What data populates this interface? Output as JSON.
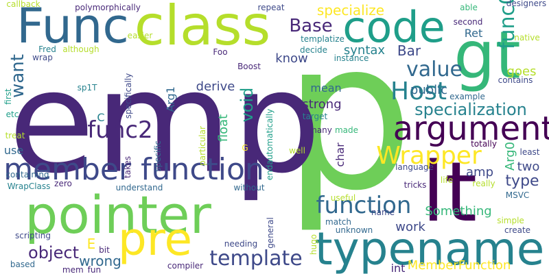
{
  "palette": {
    "dark_purple": "#440154",
    "indigo": "#482878",
    "slate_blue": "#3e4989",
    "steel_blue": "#31688e",
    "teal": "#26828e",
    "sea_green": "#1f9e89",
    "green": "#35b779",
    "lime": "#6ece58",
    "light_lime": "#b5de2b",
    "yellow": "#fde725"
  },
  "words": [
    {
      "text": "p",
      "color": "lime"
    },
    {
      "text": "emp",
      "color": "indigo"
    },
    {
      "text": "pointer",
      "color": "lime"
    },
    {
      "text": "typename",
      "color": "teal"
    },
    {
      "text": "lt",
      "color": "dark_purple"
    },
    {
      "text": "class",
      "color": "light_lime"
    },
    {
      "text": "Func",
      "color": "steel_blue"
    },
    {
      "text": "gt",
      "color": "green"
    },
    {
      "text": "code",
      "color": "sea_green"
    },
    {
      "text": "pre",
      "color": "yellow"
    },
    {
      "text": "argument",
      "color": "dark_purple"
    },
    {
      "text": "member function",
      "color": "slate_blue"
    },
    {
      "text": "function",
      "color": "steel_blue"
    },
    {
      "text": "Host",
      "color": "teal"
    },
    {
      "text": "Wrapper",
      "color": "yellow"
    },
    {
      "text": "value",
      "color": "steel_blue"
    },
    {
      "text": "func2",
      "color": "indigo"
    },
    {
      "text": "template",
      "color": "slate_blue"
    },
    {
      "text": "func0",
      "color": "sea_green"
    },
    {
      "text": "specialization",
      "color": "teal"
    },
    {
      "text": "Base",
      "color": "indigo"
    },
    {
      "text": "void",
      "color": "sea_green"
    },
    {
      "text": "want",
      "color": "steel_blue"
    },
    {
      "text": "object",
      "color": "indigo"
    },
    {
      "text": "specialize",
      "color": "yellow"
    },
    {
      "text": "Arg0",
      "color": "green"
    },
    {
      "text": "wrong",
      "color": "steel_blue"
    },
    {
      "text": "Something",
      "color": "green"
    },
    {
      "text": "float",
      "color": "green"
    },
    {
      "text": "type",
      "color": "slate_blue"
    },
    {
      "text": "derive",
      "color": "slate_blue"
    },
    {
      "text": "syntax",
      "color": "teal"
    },
    {
      "text": "Bar",
      "color": "slate_blue"
    },
    {
      "text": "strong",
      "color": "indigo"
    },
    {
      "text": "MemberFunction",
      "color": "yellow"
    },
    {
      "text": "know",
      "color": "slate_blue"
    },
    {
      "text": "work",
      "color": "slate_blue"
    },
    {
      "text": "mean",
      "color": "steel_blue"
    },
    {
      "text": "public",
      "color": "steel_blue"
    },
    {
      "text": "goes",
      "color": "light_lime"
    },
    {
      "text": "two",
      "color": "slate_blue"
    },
    {
      "text": "char",
      "color": "indigo"
    },
    {
      "text": "amp",
      "color": "slate_blue"
    },
    {
      "text": "E",
      "color": "yellow"
    },
    {
      "text": "C",
      "color": "teal"
    },
    {
      "text": "Ret",
      "color": "steel_blue"
    },
    {
      "text": "Arg1",
      "color": "steel_blue"
    },
    {
      "text": "int",
      "color": "indigo"
    },
    {
      "text": "use",
      "color": "steel_blue"
    },
    {
      "text": "repeat",
      "color": "slate_blue"
    },
    {
      "text": "callback",
      "color": "light_lime"
    },
    {
      "text": "polymorphically",
      "color": "indigo"
    },
    {
      "text": "second",
      "color": "indigo"
    },
    {
      "text": "able",
      "color": "green"
    },
    {
      "text": "designers",
      "color": "slate_blue"
    },
    {
      "text": "native",
      "color": "light_lime"
    },
    {
      "text": "templatize",
      "color": "teal"
    },
    {
      "text": "decide",
      "color": "teal"
    },
    {
      "text": "instance",
      "color": "teal"
    },
    {
      "text": "Foo",
      "color": "indigo"
    },
    {
      "text": "Boost",
      "color": "indigo"
    },
    {
      "text": "easier",
      "color": "light_lime"
    },
    {
      "text": "although",
      "color": "light_lime"
    },
    {
      "text": "Fred",
      "color": "teal"
    },
    {
      "text": "wrap",
      "color": "slate_blue"
    },
    {
      "text": "contains",
      "color": "slate_blue"
    },
    {
      "text": "example",
      "color": "steel_blue"
    },
    {
      "text": "life",
      "color": "light_lime"
    },
    {
      "text": "specifically",
      "color": "slate_blue"
    },
    {
      "text": "sp1T",
      "color": "teal"
    },
    {
      "text": "first",
      "color": "sea_green"
    },
    {
      "text": "etc",
      "color": "sea_green"
    },
    {
      "text": "treat",
      "color": "light_lime"
    },
    {
      "text": "target",
      "color": "teal"
    },
    {
      "text": "made",
      "color": "green"
    },
    {
      "text": "many",
      "color": "indigo"
    },
    {
      "text": "well",
      "color": "light_lime"
    },
    {
      "text": "totally",
      "color": "dark_purple"
    },
    {
      "text": "least",
      "color": "slate_blue"
    },
    {
      "text": "language",
      "color": "slate_blue"
    },
    {
      "text": "tricks",
      "color": "indigo"
    },
    {
      "text": "really",
      "color": "light_lime"
    },
    {
      "text": "MSVC",
      "color": "steel_blue"
    },
    {
      "text": "containing",
      "color": "steel_blue"
    },
    {
      "text": "WrapClass",
      "color": "teal"
    },
    {
      "text": "zero",
      "color": "indigo"
    },
    {
      "text": "understand",
      "color": "steel_blue"
    },
    {
      "text": "without",
      "color": "steel_blue"
    },
    {
      "text": "takes",
      "color": "indigo"
    },
    {
      "text": "specific",
      "color": "steel_blue"
    },
    {
      "text": "particular",
      "color": "light_lime"
    },
    {
      "text": "G",
      "color": "yellow"
    },
    {
      "text": "endautomatically",
      "color": "sea_green"
    },
    {
      "text": "useful",
      "color": "light_lime"
    },
    {
      "text": "name",
      "color": "slate_blue"
    },
    {
      "text": "match",
      "color": "steel_blue"
    },
    {
      "text": "unknown",
      "color": "steel_blue"
    },
    {
      "text": "general",
      "color": "slate_blue"
    },
    {
      "text": "hugo",
      "color": "light_lime"
    },
    {
      "text": "simple",
      "color": "light_lime"
    },
    {
      "text": "create",
      "color": "slate_blue"
    },
    {
      "text": "scripting",
      "color": "slate_blue"
    },
    {
      "text": "bit",
      "color": "indigo"
    },
    {
      "text": "needing",
      "color": "slate_blue"
    },
    {
      "text": "based",
      "color": "steel_blue"
    },
    {
      "text": "mem_fun",
      "color": "indigo"
    },
    {
      "text": "compiler",
      "color": "indigo"
    }
  ]
}
